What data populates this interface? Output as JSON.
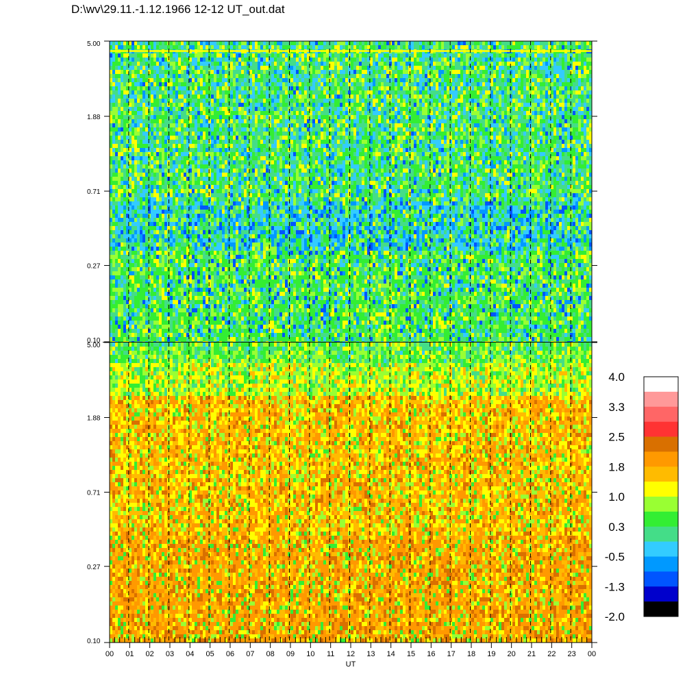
{
  "title": "D:\\wv\\29.11.-1.12.1966  12-12 UT_out.dat",
  "chart_data": [
    {
      "type": "heatmap",
      "panel": "top",
      "y_ticks": [
        "5.00",
        "1.88",
        "0.71",
        "0.27",
        "0.10"
      ],
      "y_tick_values": [
        5.0,
        1.88,
        0.71,
        0.27,
        0.1
      ],
      "y_scale": "log",
      "ylim": [
        0.1,
        5.0
      ],
      "x_ticks": [
        "00",
        "01",
        "02",
        "03",
        "04",
        "05",
        "06",
        "07",
        "08",
        "09",
        "10",
        "11",
        "12",
        "13",
        "14",
        "15",
        "16",
        "17",
        "18",
        "19",
        "20",
        "21",
        "22",
        "23",
        "00"
      ],
      "xlim": [
        0,
        24
      ],
      "dashed_gridlines_at_x": [
        0.95,
        1.95,
        2.95,
        3.95,
        4.95,
        5.95,
        6.95,
        7.95,
        8.95,
        9.95,
        10.95,
        11.95,
        12.95,
        13.95,
        14.95,
        15.95,
        16.95,
        17.95,
        18.95,
        19.95,
        20.95,
        21.95,
        22.95
      ],
      "value_range_approx": [
        -1.3,
        1.0
      ],
      "dominant_colors": [
        "green",
        "cyan",
        "yellow",
        "blue"
      ]
    },
    {
      "type": "heatmap",
      "panel": "bottom",
      "y_ticks": [
        "5.00",
        "1.88",
        "0.71",
        "0.27",
        "0.10"
      ],
      "y_tick_values": [
        5.0,
        1.88,
        0.71,
        0.27,
        0.1
      ],
      "y_scale": "log",
      "ylim": [
        0.1,
        5.0
      ],
      "x_ticks": [
        "00",
        "01",
        "02",
        "03",
        "04",
        "05",
        "06",
        "07",
        "08",
        "09",
        "10",
        "11",
        "12",
        "13",
        "14",
        "15",
        "16",
        "17",
        "18",
        "19",
        "20",
        "21",
        "22",
        "23",
        "00"
      ],
      "xlim": [
        0,
        24
      ],
      "xlabel": "UT",
      "dashed_gridlines_at_x": [
        0.95,
        1.95,
        2.95,
        3.95,
        4.95,
        5.95,
        6.95,
        7.95,
        8.95,
        9.95,
        10.95,
        11.95,
        12.95,
        13.95,
        14.95,
        15.95,
        16.95,
        17.95,
        18.95,
        19.95,
        20.95,
        21.95,
        22.95
      ],
      "value_range_approx": [
        0.3,
        2.5
      ],
      "dominant_colors": [
        "orange",
        "yellow",
        "green"
      ]
    }
  ],
  "colorbar": {
    "labels": [
      "4.0",
      "3.3",
      "2.5",
      "1.8",
      "1.0",
      "0.3",
      "-0.5",
      "-1.3",
      "-2.0"
    ],
    "range": [
      -2.0,
      4.0
    ],
    "colors": [
      "#ffffff",
      "#ff9999",
      "#ff6666",
      "#ff3333",
      "#d97000",
      "#ff9900",
      "#ffbb00",
      "#ffff00",
      "#99ff33",
      "#33ee33",
      "#44dd88",
      "#33ccff",
      "#0099ff",
      "#0055ff",
      "#0000cc",
      "#000000"
    ]
  },
  "palette": {
    "black": "#000000",
    "navy": "#0000cc",
    "blue": "#0055ff",
    "azure": "#0099ff",
    "cyan": "#33ccff",
    "teal": "#44dd88",
    "green": "#33ee33",
    "lime": "#99ff33",
    "yellow": "#ffff00",
    "gold": "#ffbb00",
    "orange": "#ff9900",
    "brown": "#d97000"
  }
}
